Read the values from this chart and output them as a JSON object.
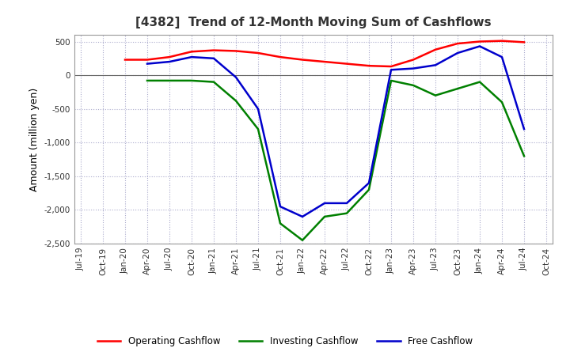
{
  "title": "[4382]  Trend of 12-Month Moving Sum of Cashflows",
  "ylabel": "Amount (million yen)",
  "ylim": [
    -2500,
    600
  ],
  "yticks": [
    500,
    0,
    -500,
    -1000,
    -1500,
    -2000,
    -2500
  ],
  "background_color": "#ffffff",
  "grid_color": "#aaaacc",
  "dates": [
    "Jul-19",
    "Oct-19",
    "Jan-20",
    "Apr-20",
    "Jul-20",
    "Oct-20",
    "Jan-21",
    "Apr-21",
    "Jul-21",
    "Oct-21",
    "Jan-22",
    "Apr-22",
    "Jul-22",
    "Oct-22",
    "Jan-23",
    "Apr-23",
    "Jul-23",
    "Oct-23",
    "Jan-24",
    "Apr-24",
    "Jul-24",
    "Oct-24"
  ],
  "operating": [
    null,
    null,
    230,
    230,
    270,
    350,
    370,
    360,
    330,
    270,
    230,
    200,
    170,
    140,
    130,
    230,
    380,
    470,
    500,
    510,
    490,
    null
  ],
  "investing": [
    null,
    null,
    null,
    -80,
    -80,
    -80,
    -100,
    -380,
    -800,
    -2200,
    -2450,
    -2100,
    -2050,
    -1700,
    -80,
    -150,
    -300,
    -200,
    -100,
    -400,
    -1200,
    null
  ],
  "free": [
    null,
    null,
    null,
    170,
    200,
    270,
    250,
    -30,
    -500,
    -1950,
    -2100,
    -1900,
    -1900,
    -1600,
    80,
    100,
    150,
    330,
    430,
    270,
    -800,
    null
  ],
  "operating_color": "#ff0000",
  "investing_color": "#008000",
  "free_color": "#0000cc",
  "line_width": 1.8
}
